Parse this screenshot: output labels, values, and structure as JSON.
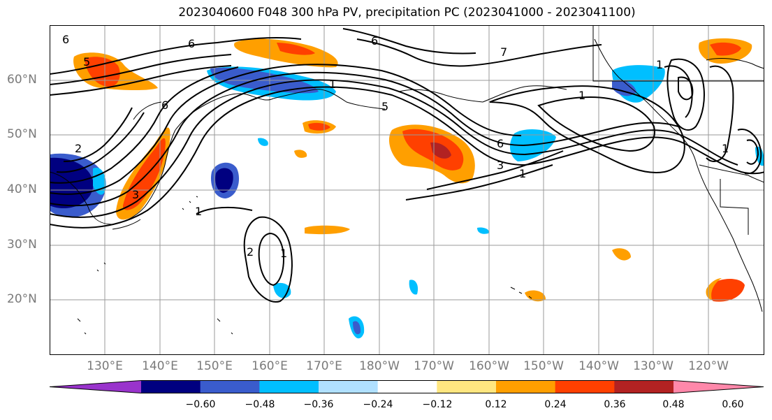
{
  "title": "2023040600 F048 300 hPa PV, precipitation PC (2023041000 - 2023041100)",
  "lat_labels": [
    "60°N",
    "50°N",
    "40°N",
    "30°N",
    "20°N"
  ],
  "lon_labels": [
    "130°E",
    "140°E",
    "150°E",
    "160°E",
    "170°E",
    "180°W",
    "170°W",
    "160°W",
    "150°W",
    "140°W",
    "130°W",
    "120°W"
  ],
  "colorbar": {
    "ticks": [
      "−0.60",
      "−0.48",
      "−0.36",
      "−0.24",
      "−0.12",
      "0.12",
      "0.24",
      "0.36",
      "0.48",
      "0.60"
    ],
    "colors": [
      "#9933cc",
      "#000080",
      "#3a5ccc",
      "#00bfff",
      "#b0e0ff",
      "#ffffff",
      "#ffe680",
      "#ff9f00",
      "#ff4000",
      "#b22222",
      "#ff88aa"
    ]
  },
  "pv_labels": [
    "6",
    "5",
    "2",
    "1",
    "3",
    "6",
    "6",
    "5",
    "6",
    "7",
    "1",
    "1",
    "3",
    "6",
    "1",
    "2",
    "1",
    "1",
    "1"
  ],
  "colors": {
    "contour": "#000000",
    "grid": "#9a9a9a",
    "axis_label": "#7a7a7a"
  }
}
